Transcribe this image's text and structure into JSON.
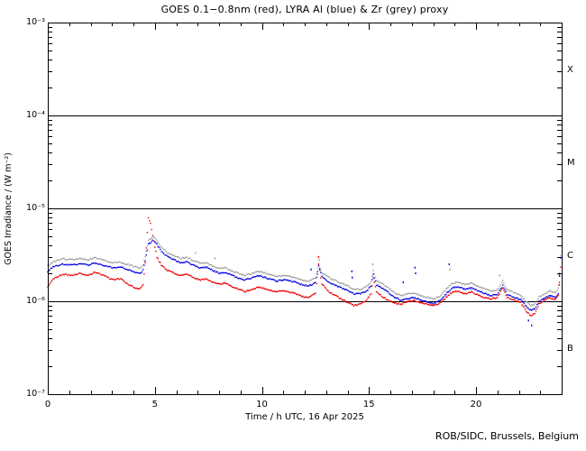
{
  "page": {
    "footer_credit": "ROB/SIDC, Brussels, Belgium"
  },
  "chart_data": {
    "type": "scatter",
    "title": "GOES 0.1−0.8nm (red), LYRA Al (blue) & Zr (grey) proxy",
    "xlabel": "Time / h UTC, 16 Apr 2025",
    "ylabel": "GOES Irradiance / (W m⁻²)",
    "xlim": [
      0,
      24
    ],
    "ylim": [
      1e-07,
      0.001
    ],
    "y_scale": "log",
    "x_ticks": [
      0,
      5,
      10,
      15,
      20
    ],
    "x_minor_tick_step_h": 1,
    "y_tick_labels": [
      "10⁻³",
      "10⁻⁴",
      "10⁻⁵",
      "10⁻⁶",
      "10⁻⁷"
    ],
    "y_tick_exponents": [
      -3,
      -4,
      -5,
      -6,
      -7
    ],
    "hlines": [
      0.0001,
      1e-05,
      1e-06
    ],
    "flare_class_labels": [
      "X",
      "M",
      "C",
      "B"
    ],
    "value_unit": "W m⁻²",
    "value_scale": 1e-06,
    "series": [
      {
        "name": "LYRA Zr proxy",
        "color": "#a0a0a0",
        "points": [
          [
            0,
            2.4
          ],
          [
            0.25,
            2.65
          ],
          [
            0.7,
            2.85
          ],
          [
            1.1,
            2.8
          ],
          [
            1.5,
            2.9
          ],
          [
            1.9,
            2.8
          ],
          [
            2.2,
            2.95
          ],
          [
            2.6,
            2.8
          ],
          [
            3.0,
            2.6
          ],
          [
            3.4,
            2.65
          ],
          [
            3.7,
            2.5
          ],
          [
            4.0,
            2.38
          ],
          [
            4.3,
            2.28
          ],
          [
            4.45,
            2.45
          ],
          [
            4.55,
            3.0
          ],
          [
            4.7,
            4.5
          ],
          [
            4.9,
            4.9
          ],
          [
            5.05,
            4.7
          ],
          [
            5.25,
            3.95
          ],
          [
            5.6,
            3.3
          ],
          [
            5.9,
            3.1
          ],
          [
            6.2,
            2.9
          ],
          [
            6.5,
            2.95
          ],
          [
            6.8,
            2.75
          ],
          [
            7.1,
            2.58
          ],
          [
            7.4,
            2.6
          ],
          [
            7.7,
            2.4
          ],
          [
            8.0,
            2.25
          ],
          [
            8.3,
            2.3
          ],
          [
            8.6,
            2.12
          ],
          [
            8.9,
            2.0
          ],
          [
            9.2,
            1.9
          ],
          [
            9.5,
            1.97
          ],
          [
            9.8,
            2.1
          ],
          [
            10.1,
            2.04
          ],
          [
            10.4,
            1.93
          ],
          [
            10.7,
            1.86
          ],
          [
            11.0,
            1.9
          ],
          [
            11.3,
            1.86
          ],
          [
            11.6,
            1.79
          ],
          [
            11.9,
            1.68
          ],
          [
            12.2,
            1.65
          ],
          [
            12.5,
            1.77
          ],
          [
            12.65,
            2.55
          ],
          [
            12.8,
            2.05
          ],
          [
            13.1,
            1.82
          ],
          [
            13.4,
            1.68
          ],
          [
            13.7,
            1.57
          ],
          [
            14.0,
            1.46
          ],
          [
            14.3,
            1.35
          ],
          [
            14.6,
            1.34
          ],
          [
            14.9,
            1.45
          ],
          [
            15.1,
            1.62
          ],
          [
            15.2,
            2.12
          ],
          [
            15.35,
            1.68
          ],
          [
            15.6,
            1.55
          ],
          [
            15.9,
            1.4
          ],
          [
            16.2,
            1.23
          ],
          [
            16.5,
            1.15
          ],
          [
            16.8,
            1.2
          ],
          [
            17.1,
            1.23
          ],
          [
            17.4,
            1.15
          ],
          [
            17.7,
            1.11
          ],
          [
            18.0,
            1.06
          ],
          [
            18.3,
            1.12
          ],
          [
            18.6,
            1.34
          ],
          [
            18.9,
            1.57
          ],
          [
            19.2,
            1.6
          ],
          [
            19.5,
            1.51
          ],
          [
            19.8,
            1.56
          ],
          [
            20.1,
            1.44
          ],
          [
            20.4,
            1.37
          ],
          [
            20.7,
            1.29
          ],
          [
            21.0,
            1.33
          ],
          [
            21.25,
            1.65
          ],
          [
            21.45,
            1.33
          ],
          [
            21.8,
            1.23
          ],
          [
            22.1,
            1.15
          ],
          [
            22.35,
            0.99
          ],
          [
            22.55,
            0.9
          ],
          [
            22.75,
            0.93
          ],
          [
            22.95,
            1.12
          ],
          [
            23.2,
            1.21
          ],
          [
            23.45,
            1.29
          ],
          [
            23.7,
            1.23
          ],
          [
            23.85,
            1.37
          ],
          [
            23.95,
            3.1
          ],
          [
            24,
            3.2
          ]
        ]
      },
      {
        "name": "LYRA Al proxy",
        "color": "#0000e0",
        "points": [
          [
            0,
            2.1
          ],
          [
            0.25,
            2.35
          ],
          [
            0.7,
            2.5
          ],
          [
            1.1,
            2.45
          ],
          [
            1.5,
            2.55
          ],
          [
            1.9,
            2.45
          ],
          [
            2.2,
            2.6
          ],
          [
            2.6,
            2.45
          ],
          [
            3.0,
            2.3
          ],
          [
            3.4,
            2.35
          ],
          [
            3.7,
            2.2
          ],
          [
            4.0,
            2.08
          ],
          [
            4.3,
            2.0
          ],
          [
            4.45,
            2.15
          ],
          [
            4.55,
            2.7
          ],
          [
            4.7,
            4.1
          ],
          [
            4.9,
            4.5
          ],
          [
            5.05,
            4.3
          ],
          [
            5.25,
            3.6
          ],
          [
            5.6,
            3.0
          ],
          [
            5.9,
            2.8
          ],
          [
            6.2,
            2.6
          ],
          [
            6.5,
            2.65
          ],
          [
            6.8,
            2.45
          ],
          [
            7.1,
            2.3
          ],
          [
            7.4,
            2.33
          ],
          [
            7.7,
            2.15
          ],
          [
            8.0,
            2.0
          ],
          [
            8.3,
            2.05
          ],
          [
            8.6,
            1.9
          ],
          [
            8.9,
            1.78
          ],
          [
            9.2,
            1.7
          ],
          [
            9.5,
            1.76
          ],
          [
            9.8,
            1.88
          ],
          [
            10.1,
            1.82
          ],
          [
            10.4,
            1.72
          ],
          [
            10.7,
            1.66
          ],
          [
            11.0,
            1.7
          ],
          [
            11.3,
            1.66
          ],
          [
            11.6,
            1.6
          ],
          [
            11.9,
            1.5
          ],
          [
            12.2,
            1.47
          ],
          [
            12.5,
            1.58
          ],
          [
            12.65,
            2.4
          ],
          [
            12.8,
            1.85
          ],
          [
            13.1,
            1.62
          ],
          [
            13.4,
            1.5
          ],
          [
            13.7,
            1.4
          ],
          [
            14.0,
            1.3
          ],
          [
            14.3,
            1.2
          ],
          [
            14.6,
            1.2
          ],
          [
            14.9,
            1.3
          ],
          [
            15.1,
            1.45
          ],
          [
            15.2,
            1.95
          ],
          [
            15.35,
            1.5
          ],
          [
            15.6,
            1.38
          ],
          [
            15.9,
            1.25
          ],
          [
            16.2,
            1.1
          ],
          [
            16.5,
            1.03
          ],
          [
            16.8,
            1.07
          ],
          [
            17.1,
            1.1
          ],
          [
            17.4,
            1.03
          ],
          [
            17.7,
            0.99
          ],
          [
            18.0,
            0.95
          ],
          [
            18.3,
            1.0
          ],
          [
            18.6,
            1.2
          ],
          [
            18.9,
            1.4
          ],
          [
            19.2,
            1.43
          ],
          [
            19.5,
            1.35
          ],
          [
            19.8,
            1.39
          ],
          [
            20.1,
            1.29
          ],
          [
            20.4,
            1.22
          ],
          [
            20.7,
            1.15
          ],
          [
            21.0,
            1.19
          ],
          [
            21.25,
            1.47
          ],
          [
            21.45,
            1.19
          ],
          [
            21.8,
            1.1
          ],
          [
            22.1,
            1.03
          ],
          [
            22.35,
            0.88
          ],
          [
            22.55,
            0.8
          ],
          [
            22.75,
            0.83
          ],
          [
            22.95,
            1.0
          ],
          [
            23.2,
            1.08
          ],
          [
            23.45,
            1.15
          ],
          [
            23.7,
            1.1
          ],
          [
            23.85,
            1.22
          ],
          [
            23.95,
            2.9
          ],
          [
            24,
            3.0
          ]
        ]
      },
      {
        "name": "GOES 0.1−0.8nm",
        "color": "#ee0000",
        "points": [
          [
            0,
            1.45
          ],
          [
            0.25,
            1.75
          ],
          [
            0.7,
            1.95
          ],
          [
            1.1,
            1.9
          ],
          [
            1.5,
            2.0
          ],
          [
            1.9,
            1.9
          ],
          [
            2.2,
            2.05
          ],
          [
            2.6,
            1.9
          ],
          [
            3.0,
            1.7
          ],
          [
            3.4,
            1.75
          ],
          [
            3.7,
            1.55
          ],
          [
            4.0,
            1.42
          ],
          [
            4.3,
            1.35
          ],
          [
            4.45,
            1.5
          ],
          [
            4.55,
            2.6
          ],
          [
            4.7,
            7.8
          ],
          [
            4.8,
            7.0
          ],
          [
            4.95,
            4.4
          ],
          [
            5.1,
            3.0
          ],
          [
            5.3,
            2.45
          ],
          [
            5.6,
            2.15
          ],
          [
            5.9,
            2.0
          ],
          [
            6.2,
            1.9
          ],
          [
            6.5,
            1.95
          ],
          [
            6.8,
            1.8
          ],
          [
            7.1,
            1.7
          ],
          [
            7.4,
            1.73
          ],
          [
            7.7,
            1.6
          ],
          [
            8.0,
            1.52
          ],
          [
            8.3,
            1.56
          ],
          [
            8.6,
            1.45
          ],
          [
            8.9,
            1.35
          ],
          [
            9.2,
            1.28
          ],
          [
            9.5,
            1.33
          ],
          [
            9.8,
            1.42
          ],
          [
            10.1,
            1.38
          ],
          [
            10.4,
            1.3
          ],
          [
            10.7,
            1.26
          ],
          [
            11.0,
            1.3
          ],
          [
            11.3,
            1.26
          ],
          [
            11.6,
            1.2
          ],
          [
            11.9,
            1.12
          ],
          [
            12.2,
            1.1
          ],
          [
            12.5,
            1.22
          ],
          [
            12.65,
            2.5
          ],
          [
            12.8,
            1.55
          ],
          [
            13.1,
            1.28
          ],
          [
            13.4,
            1.16
          ],
          [
            13.7,
            1.06
          ],
          [
            14.0,
            0.98
          ],
          [
            14.3,
            0.9
          ],
          [
            14.6,
            0.93
          ],
          [
            14.9,
            1.03
          ],
          [
            15.1,
            1.2
          ],
          [
            15.2,
            1.8
          ],
          [
            15.35,
            1.28
          ],
          [
            15.6,
            1.13
          ],
          [
            15.9,
            1.03
          ],
          [
            16.2,
            0.96
          ],
          [
            16.5,
            0.93
          ],
          [
            16.8,
            0.99
          ],
          [
            17.1,
            1.02
          ],
          [
            17.4,
            0.96
          ],
          [
            17.7,
            0.93
          ],
          [
            18.0,
            0.91
          ],
          [
            18.3,
            0.95
          ],
          [
            18.6,
            1.1
          ],
          [
            18.9,
            1.26
          ],
          [
            19.2,
            1.28
          ],
          [
            19.5,
            1.2
          ],
          [
            19.8,
            1.26
          ],
          [
            20.1,
            1.16
          ],
          [
            20.4,
            1.1
          ],
          [
            20.7,
            1.06
          ],
          [
            21.0,
            1.1
          ],
          [
            21.25,
            1.4
          ],
          [
            21.45,
            1.1
          ],
          [
            21.8,
            1.02
          ],
          [
            22.1,
            0.97
          ],
          [
            22.35,
            0.78
          ],
          [
            22.55,
            0.7
          ],
          [
            22.75,
            0.73
          ],
          [
            22.95,
            0.94
          ],
          [
            23.2,
            1.04
          ],
          [
            23.45,
            1.09
          ],
          [
            23.7,
            1.04
          ],
          [
            23.85,
            1.14
          ],
          [
            23.95,
            2.3
          ],
          [
            24,
            2.2
          ]
        ]
      }
    ],
    "outliers": [
      {
        "series": 0,
        "x": 6.9,
        "v": 3.3
      },
      {
        "series": 0,
        "x": 7.8,
        "v": 2.9
      },
      {
        "series": 1,
        "x": 12.3,
        "v": 2.2
      },
      {
        "series": 2,
        "x": 12.65,
        "v": 3.0
      },
      {
        "series": 0,
        "x": 12.68,
        "v": 2.8
      },
      {
        "series": 1,
        "x": 14.2,
        "v": 2.1
      },
      {
        "series": 1,
        "x": 14.22,
        "v": 1.8
      },
      {
        "series": 0,
        "x": 15.18,
        "v": 2.5
      },
      {
        "series": 1,
        "x": 16.6,
        "v": 1.6
      },
      {
        "series": 1,
        "x": 17.15,
        "v": 2.3
      },
      {
        "series": 1,
        "x": 17.18,
        "v": 2.0
      },
      {
        "series": 1,
        "x": 18.75,
        "v": 2.5
      },
      {
        "series": 0,
        "x": 18.78,
        "v": 2.2
      },
      {
        "series": 0,
        "x": 21.1,
        "v": 1.9
      },
      {
        "series": 1,
        "x": 22.45,
        "v": 0.62
      },
      {
        "series": 1,
        "x": 22.6,
        "v": 0.55
      },
      {
        "series": 1,
        "x": 23.9,
        "v": 1.9
      },
      {
        "series": 2,
        "x": 23.88,
        "v": 1.5
      }
    ]
  }
}
